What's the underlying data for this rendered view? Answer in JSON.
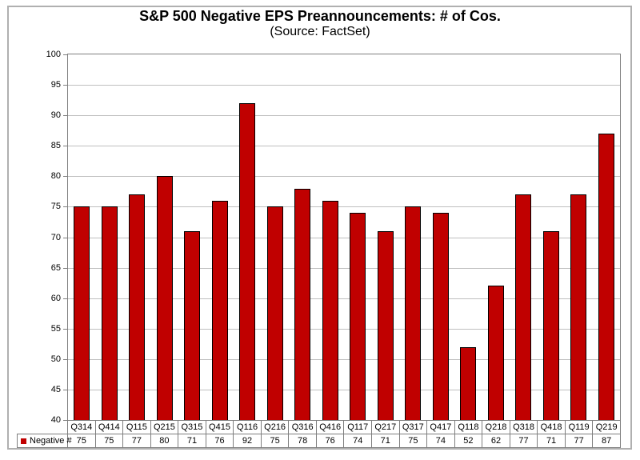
{
  "chart_data": {
    "type": "bar",
    "title": "S&P 500 Negative EPS Preannouncements: # of Cos.",
    "subtitle": "(Source: FactSet)",
    "categories": [
      "Q314",
      "Q414",
      "Q115",
      "Q215",
      "Q315",
      "Q415",
      "Q116",
      "Q216",
      "Q316",
      "Q416",
      "Q117",
      "Q217",
      "Q317",
      "Q417",
      "Q118",
      "Q218",
      "Q318",
      "Q418",
      "Q119",
      "Q219"
    ],
    "series": [
      {
        "name": "Negative #",
        "values": [
          75,
          75,
          77,
          80,
          71,
          76,
          92,
          75,
          78,
          76,
          74,
          71,
          75,
          74,
          52,
          62,
          77,
          71,
          77,
          87
        ]
      }
    ],
    "ylim": [
      40,
      100
    ],
    "y_ticks": [
      100,
      95,
      90,
      85,
      80,
      75,
      70,
      65,
      60,
      55,
      50,
      45,
      40
    ],
    "grid": true,
    "legend_position": "bottom-left",
    "bar_color": "#c00000",
    "bar_border_color": "#000000",
    "xlabel": "",
    "ylabel": ""
  }
}
